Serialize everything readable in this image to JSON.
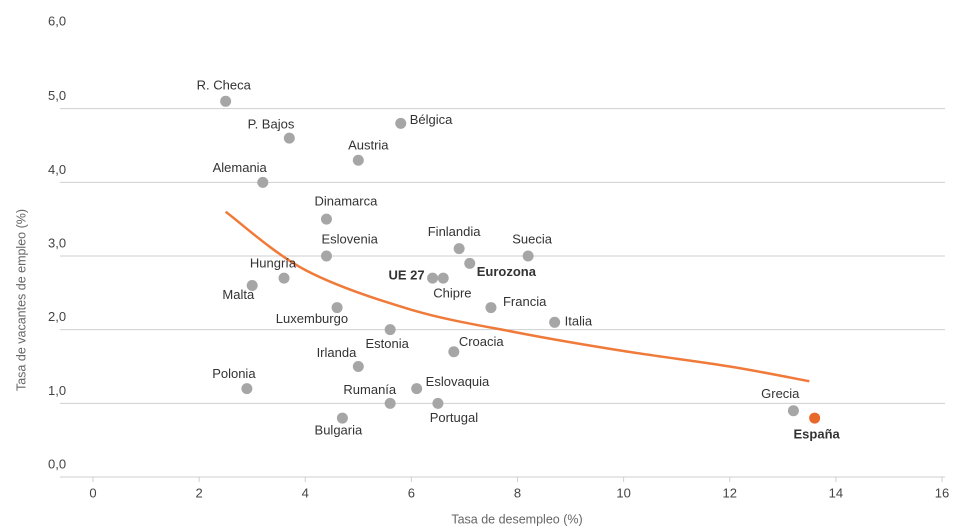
{
  "chart_data": {
    "type": "scatter",
    "x_label": "Tasa de desempleo (%)",
    "y_label": "Tasa de vacantes de empleo (%)",
    "categories": [
      "R. Checa",
      "P. Bajos",
      "Bélgica",
      "Austria",
      "Alemania",
      "Dinamarca",
      "Eslovenia",
      "Finlandia",
      "Suecia",
      "Eurozona",
      "UE 27",
      "Chipre",
      "Hungría",
      "Malta",
      "Francia",
      "Luxemburgo",
      "Estonia",
      "Italia",
      "Croacia",
      "Irlanda",
      "Polonia",
      "Eslovaquia",
      "Rumanía",
      "Portugal",
      "Bulgaria",
      "Grecia",
      "España"
    ],
    "x": [
      2.5,
      3.7,
      5.8,
      5.0,
      3.2,
      4.4,
      4.4,
      6.9,
      8.2,
      7.1,
      6.4,
      6.6,
      3.6,
      3.0,
      7.5,
      4.6,
      5.6,
      8.7,
      6.8,
      5.0,
      2.9,
      6.1,
      5.6,
      6.5,
      4.7,
      13.2,
      13.6
    ],
    "values": [
      5.1,
      4.6,
      4.8,
      4.3,
      4.0,
      3.5,
      3.0,
      3.1,
      3.0,
      2.9,
      2.7,
      2.7,
      2.7,
      2.6,
      2.3,
      2.3,
      2.0,
      2.1,
      1.7,
      1.5,
      1.2,
      1.2,
      1.0,
      1.0,
      0.8,
      0.9,
      0.8
    ],
    "colors": [
      "#a6a6a6",
      "#a6a6a6",
      "#a6a6a6",
      "#a6a6a6",
      "#a6a6a6",
      "#a6a6a6",
      "#a6a6a6",
      "#a6a6a6",
      "#a6a6a6",
      "#a6a6a6",
      "#a6a6a6",
      "#a6a6a6",
      "#a6a6a6",
      "#a6a6a6",
      "#a6a6a6",
      "#a6a6a6",
      "#a6a6a6",
      "#a6a6a6",
      "#a6a6a6",
      "#a6a6a6",
      "#a6a6a6",
      "#a6a6a6",
      "#a6a6a6",
      "#a6a6a6",
      "#a6a6a6",
      "#a6a6a6",
      "#e8692a"
    ],
    "trend": {
      "color": "#f07a3a",
      "x": [
        2.5,
        4,
        6,
        8,
        10,
        12,
        13.5
      ],
      "values": [
        3.6,
        2.81,
        2.27,
        1.96,
        1.71,
        1.5,
        1.3
      ]
    },
    "xlim": [
      0,
      16
    ],
    "xticks": [
      0,
      2,
      4,
      6,
      8,
      10,
      12,
      14,
      16
    ],
    "ylim": [
      0,
      6
    ],
    "yticks": [
      {
        "value": 0,
        "label": "0,0"
      },
      {
        "value": 1,
        "label": "1,0"
      },
      {
        "value": 2,
        "label": "2,0"
      },
      {
        "value": 3,
        "label": "3,0"
      },
      {
        "value": 4,
        "label": "4,0"
      },
      {
        "value": 5,
        "label": "5,0"
      },
      {
        "value": 6,
        "label": "6,0"
      }
    ],
    "grid": true
  }
}
